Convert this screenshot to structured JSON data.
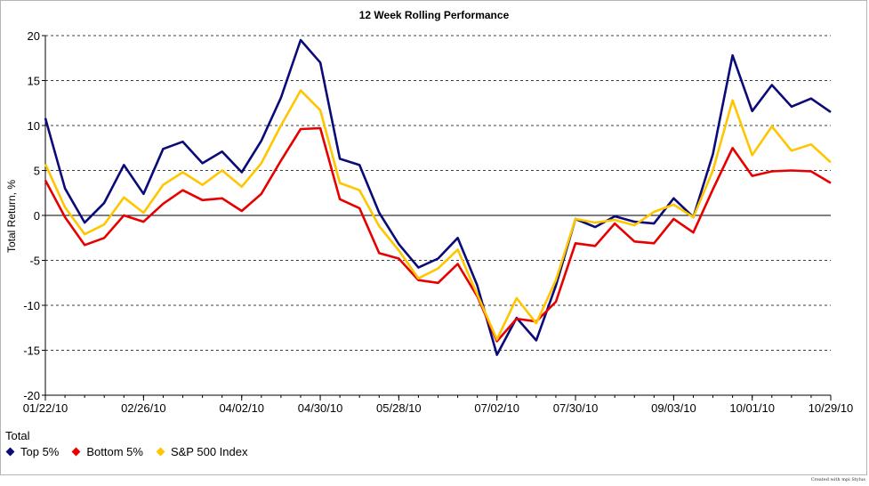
{
  "chart_data": {
    "type": "line",
    "title": "12 Week Rolling Performance",
    "ylabel": "Total Return, %",
    "xlabel": "",
    "ylim": [
      -20,
      20
    ],
    "yticks": [
      20,
      15,
      10,
      5,
      0,
      -5,
      -10,
      -15,
      -20
    ],
    "x": [
      "01/22/10",
      "01/29/10",
      "02/05/10",
      "02/12/10",
      "02/19/10",
      "02/26/10",
      "03/05/10",
      "03/12/10",
      "03/19/10",
      "03/26/10",
      "04/02/10",
      "04/09/10",
      "04/16/10",
      "04/23/10",
      "04/30/10",
      "05/07/10",
      "05/14/10",
      "05/21/10",
      "05/28/10",
      "06/04/10",
      "06/11/10",
      "06/18/10",
      "06/25/10",
      "07/02/10",
      "07/09/10",
      "07/16/10",
      "07/23/10",
      "07/30/10",
      "08/06/10",
      "08/13/10",
      "08/20/10",
      "08/27/10",
      "09/03/10",
      "09/10/10",
      "09/17/10",
      "09/24/10",
      "10/01/10",
      "10/08/10",
      "10/15/10",
      "10/22/10",
      "10/29/10"
    ],
    "xtick_labels": [
      "01/22/10",
      "02/26/10",
      "04/02/10",
      "04/30/10",
      "05/28/10",
      "07/02/10",
      "07/30/10",
      "09/03/10",
      "10/01/10",
      "10/29/10"
    ],
    "series": [
      {
        "name": "Top 5%",
        "color": "#0a0a78",
        "values": [
          10.8,
          3.0,
          -0.8,
          1.4,
          5.6,
          2.4,
          7.4,
          8.2,
          5.8,
          7.1,
          4.8,
          8.3,
          13.1,
          19.5,
          17.0,
          6.3,
          5.6,
          0.3,
          -3.2,
          -5.8,
          -4.8,
          -2.5,
          -7.8,
          -15.5,
          -11.4,
          -13.9,
          -7.8,
          -0.4,
          -1.3,
          -0.1,
          -0.7,
          -0.9,
          1.9,
          -0.2,
          6.8,
          17.8,
          11.6,
          14.5,
          12.1,
          13.0,
          11.5
        ]
      },
      {
        "name": "Bottom 5%",
        "color": "#e60000",
        "values": [
          3.9,
          -0.2,
          -3.3,
          -2.5,
          0.0,
          -0.7,
          1.3,
          2.8,
          1.7,
          1.9,
          0.5,
          2.4,
          6.1,
          9.6,
          9.7,
          1.8,
          0.8,
          -4.2,
          -4.8,
          -7.2,
          -7.5,
          -5.4,
          -9.0,
          -14.0,
          -11.5,
          -11.8,
          -9.6,
          -3.1,
          -3.4,
          -0.9,
          -2.9,
          -3.1,
          -0.4,
          -1.9,
          2.9,
          7.5,
          4.4,
          4.9,
          5.0,
          4.9,
          3.6
        ]
      },
      {
        "name": "S&P 500 Index",
        "color": "#ffc600",
        "values": [
          5.7,
          0.9,
          -2.1,
          -1.0,
          2.0,
          0.3,
          3.4,
          4.8,
          3.4,
          5.0,
          3.2,
          5.8,
          10.0,
          13.9,
          11.7,
          3.6,
          2.8,
          -1.2,
          -3.9,
          -7.0,
          -5.9,
          -3.8,
          -8.8,
          -13.8,
          -9.2,
          -12.0,
          -7.2,
          -0.4,
          -0.8,
          -0.5,
          -1.1,
          0.4,
          1.2,
          -0.2,
          5.0,
          12.8,
          6.7,
          9.9,
          7.2,
          7.9,
          5.9
        ]
      }
    ],
    "grid": true,
    "legend": {
      "title": "Total",
      "placement": "bottom-left"
    },
    "credit": "Created with mpi Stylus"
  }
}
